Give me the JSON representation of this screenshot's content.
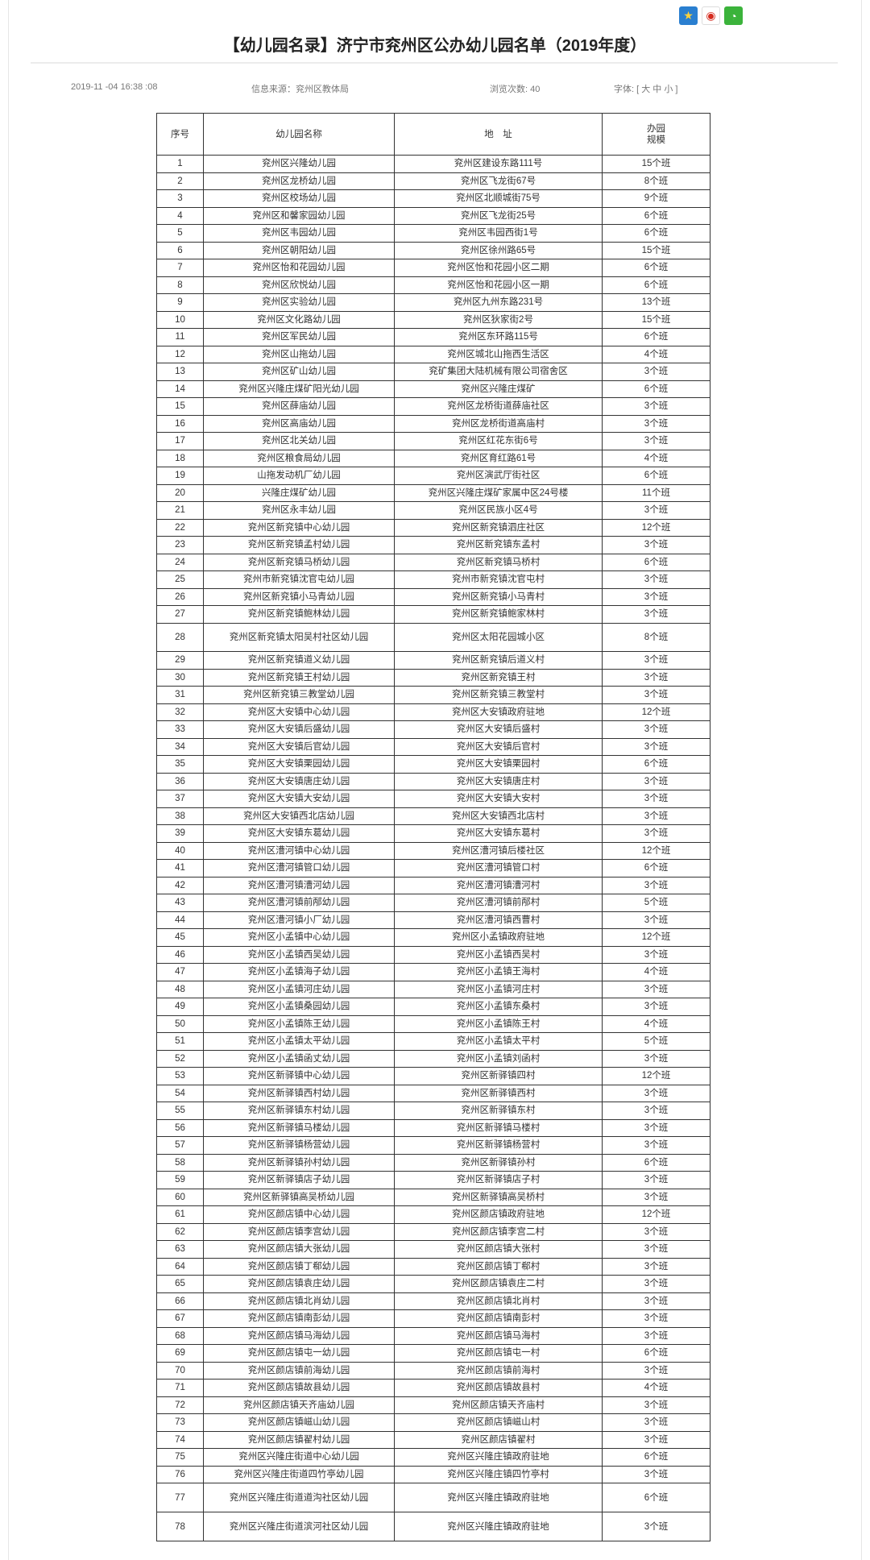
{
  "share_icons": [
    "qzone-icon",
    "weibo-icon",
    "wechat-icon"
  ],
  "title": "【幼儿园名录】济宁市兖州区公办幼儿园名单（2019年度）",
  "meta": {
    "datetime": "2019-11 -04 16:38 :08",
    "source": "信息来源：兖州区教体局",
    "views": "浏览次数: 40",
    "font_label": "字体: [",
    "font_large": "大",
    "font_medium": "中",
    "font_small": "小",
    "font_close": "]"
  },
  "table": {
    "headers": {
      "no": "序号",
      "name": "幼儿园名称",
      "address": "地　址",
      "size_line1": "办园",
      "size_line2": "规模"
    },
    "rows": [
      [
        "1",
        "兖州区兴隆幼儿园",
        "兖州区建设东路111号",
        "15个班"
      ],
      [
        "2",
        "兖州区龙桥幼儿园",
        "兖州区飞龙街67号",
        "8个班"
      ],
      [
        "3",
        "兖州区校场幼儿园",
        "兖州区北顺城街75号",
        "9个班"
      ],
      [
        "4",
        "兖州区和馨家园幼儿园",
        "兖州区飞龙街25号",
        "6个班"
      ],
      [
        "5",
        "兖州区韦园幼儿园",
        "兖州区韦园西街1号",
        "6个班"
      ],
      [
        "6",
        "兖州区朝阳幼儿园",
        "兖州区徐州路65号",
        "15个班"
      ],
      [
        "7",
        "兖州区怡和花园幼儿园",
        "兖州区怡和花园小区二期",
        "6个班"
      ],
      [
        "8",
        "兖州区欣悦幼儿园",
        "兖州区怡和花园小区一期",
        "6个班"
      ],
      [
        "9",
        "兖州区实验幼儿园",
        "兖州区九州东路231号",
        "13个班"
      ],
      [
        "10",
        "兖州区文化路幼儿园",
        "兖州区狄家街2号",
        "15个班"
      ],
      [
        "11",
        "兖州区军民幼儿园",
        "兖州区东环路115号",
        "6个班"
      ],
      [
        "12",
        "兖州区山拖幼儿园",
        "兖州区城北山拖西生活区",
        "4个班"
      ],
      [
        "13",
        "兖州区矿山幼儿园",
        "兖矿集团大陆机械有限公司宿舍区",
        "3个班"
      ],
      [
        "14",
        "兖州区兴隆庄煤矿阳光幼儿园",
        "兖州区兴隆庄煤矿",
        "6个班"
      ],
      [
        "15",
        "兖州区薛庙幼儿园",
        "兖州区龙桥街道薛庙社区",
        "3个班"
      ],
      [
        "16",
        "兖州区高庙幼儿园",
        "兖州区龙桥街道高庙村",
        "3个班"
      ],
      [
        "17",
        "兖州区北关幼儿园",
        "兖州区红花东街6号",
        "3个班"
      ],
      [
        "18",
        "兖州区粮食局幼儿园",
        "兖州区育红路61号",
        "4个班"
      ],
      [
        "19",
        "山拖发动机厂幼儿园",
        "兖州区演武厅街社区",
        "6个班"
      ],
      [
        "20",
        "兴隆庄煤矿幼儿园",
        "兖州区兴隆庄煤矿家属中区24号楼",
        "11个班"
      ],
      [
        "21",
        "兖州区永丰幼儿园",
        "兖州区民族小区4号",
        "3个班"
      ],
      [
        "22",
        "兖州区新兖镇中心幼儿园",
        "兖州区新兖镇泗庄社区",
        "12个班"
      ],
      [
        "23",
        "兖州区新兖镇孟村幼儿园",
        "兖州区新兖镇东孟村",
        "3个班"
      ],
      [
        "24",
        "兖州区新兖镇马桥幼儿园",
        "兖州区新兖镇马桥村",
        "6个班"
      ],
      [
        "25",
        "兖州市新兖镇沈官屯幼儿园",
        "兖州市新兖镇沈官屯村",
        "3个班"
      ],
      [
        "26",
        "兖州区新兖镇小马青幼儿园",
        "兖州区新兖镇小马青村",
        "3个班"
      ],
      [
        "27",
        "兖州区新兖镇鲍林幼儿园",
        "兖州区新兖镇鲍家林村",
        "3个班"
      ],
      [
        "28",
        "兖州区新兖镇太阳吴村社区幼儿园",
        "兖州区太阳花园城小区",
        "8个班"
      ],
      [
        "29",
        "兖州区新兖镇道义幼儿园",
        "兖州区新兖镇后道义村",
        "3个班"
      ],
      [
        "30",
        "兖州区新兖镇王村幼儿园",
        "兖州区新兖镇王村",
        "3个班"
      ],
      [
        "31",
        "兖州区新兖镇三教堂幼儿园",
        "兖州区新兖镇三教堂村",
        "3个班"
      ],
      [
        "32",
        "兖州区大安镇中心幼儿园",
        "兖州区大安镇政府驻地",
        "12个班"
      ],
      [
        "33",
        "兖州区大安镇后盛幼儿园",
        "兖州区大安镇后盛村",
        "3个班"
      ],
      [
        "34",
        "兖州区大安镇后官幼儿园",
        "兖州区大安镇后官村",
        "3个班"
      ],
      [
        "35",
        "兖州区大安镇栗园幼儿园",
        "兖州区大安镇栗园村",
        "6个班"
      ],
      [
        "36",
        "兖州区大安镇唐庄幼儿园",
        "兖州区大安镇唐庄村",
        "3个班"
      ],
      [
        "37",
        "兖州区大安镇大安幼儿园",
        "兖州区大安镇大安村",
        "3个班"
      ],
      [
        "38",
        "兖州区大安镇西北店幼儿园",
        "兖州区大安镇西北店村",
        "3个班"
      ],
      [
        "39",
        "兖州区大安镇东葛幼儿园",
        "兖州区大安镇东葛村",
        "3个班"
      ],
      [
        "40",
        "兖州区漕河镇中心幼儿园",
        "兖州区漕河镇后楼社区",
        "12个班"
      ],
      [
        "41",
        "兖州区漕河镇管口幼儿园",
        "兖州区漕河镇管口村",
        "6个班"
      ],
      [
        "42",
        "兖州区漕河镇漕河幼儿园",
        "兖州区漕河镇漕河村",
        "3个班"
      ],
      [
        "43",
        "兖州区漕河镇前邴幼儿园",
        "兖州区漕河镇前邴村",
        "5个班"
      ],
      [
        "44",
        "兖州区漕河镇小厂幼儿园",
        "兖州区漕河镇西曹村",
        "3个班"
      ],
      [
        "45",
        "兖州区小孟镇中心幼儿园",
        "兖州区小孟镇政府驻地",
        "12个班"
      ],
      [
        "46",
        "兖州区小孟镇西吴幼儿园",
        "兖州区小孟镇西吴村",
        "3个班"
      ],
      [
        "47",
        "兖州区小孟镇海子幼儿园",
        "兖州区小孟镇王海村",
        "4个班"
      ],
      [
        "48",
        "兖州区小孟镇河庄幼儿园",
        "兖州区小孟镇河庄村",
        "3个班"
      ],
      [
        "49",
        "兖州区小孟镇桑园幼儿园",
        "兖州区小孟镇东桑村",
        "3个班"
      ],
      [
        "50",
        "兖州区小孟镇陈王幼儿园",
        "兖州区小孟镇陈王村",
        "4个班"
      ],
      [
        "51",
        "兖州区小孟镇太平幼儿园",
        "兖州区小孟镇太平村",
        "5个班"
      ],
      [
        "52",
        "兖州区小孟镇函丈幼儿园",
        "兖州区小孟镇刘函村",
        "3个班"
      ],
      [
        "53",
        "兖州区新驿镇中心幼儿园",
        "兖州区新驿镇四村",
        "12个班"
      ],
      [
        "54",
        "兖州区新驿镇西村幼儿园",
        "兖州区新驿镇西村",
        "3个班"
      ],
      [
        "55",
        "兖州区新驿镇东村幼儿园",
        "兖州区新驿镇东村",
        "3个班"
      ],
      [
        "56",
        "兖州区新驿镇马楼幼儿园",
        "兖州区新驿镇马楼村",
        "3个班"
      ],
      [
        "57",
        "兖州区新驿镇杨营幼儿园",
        "兖州区新驿镇杨营村",
        "3个班"
      ],
      [
        "58",
        "兖州区新驿镇孙村幼儿园",
        "兖州区新驿镇孙村",
        "6个班"
      ],
      [
        "59",
        "兖州区新驿镇店子幼儿园",
        "兖州区新驿镇店子村",
        "3个班"
      ],
      [
        "60",
        "兖州区新驿镇高吴桥幼儿园",
        "兖州区新驿镇高吴桥村",
        "3个班"
      ],
      [
        "61",
        "兖州区颜店镇中心幼儿园",
        "兖州区颜店镇政府驻地",
        "12个班"
      ],
      [
        "62",
        "兖州区颜店镇李宫幼儿园",
        "兖州区颜店镇李宫二村",
        "3个班"
      ],
      [
        "63",
        "兖州区颜店镇大张幼儿园",
        "兖州区颜店镇大张村",
        "3个班"
      ],
      [
        "64",
        "兖州区颜店镇丁郗幼儿园",
        "兖州区颜店镇丁郗村",
        "3个班"
      ],
      [
        "65",
        "兖州区颜店镇袁庄幼儿园",
        "兖州区颜店镇袁庄二村",
        "3个班"
      ],
      [
        "66",
        "兖州区颜店镇北肖幼儿园",
        "兖州区颜店镇北肖村",
        "3个班"
      ],
      [
        "67",
        "兖州区颜店镇南彭幼儿园",
        "兖州区颜店镇南彭村",
        "3个班"
      ],
      [
        "68",
        "兖州区颜店镇马海幼儿园",
        "兖州区颜店镇马海村",
        "3个班"
      ],
      [
        "69",
        "兖州区颜店镇屯一幼儿园",
        "兖州区颜店镇屯一村",
        "6个班"
      ],
      [
        "70",
        "兖州区颜店镇前海幼儿园",
        "兖州区颜店镇前海村",
        "3个班"
      ],
      [
        "71",
        "兖州区颜店镇故县幼儿园",
        "兖州区颜店镇故县村",
        "4个班"
      ],
      [
        "72",
        "兖州区颜店镇天齐庙幼儿园",
        "兖州区颜店镇天齐庙村",
        "3个班"
      ],
      [
        "73",
        "兖州区颜店镇嵫山幼儿园",
        "兖州区颜店镇嵫山村",
        "3个班"
      ],
      [
        "74",
        "兖州区颜店镇翟村幼儿园",
        "兖州区颜店镇翟村",
        "3个班"
      ],
      [
        "75",
        "兖州区兴隆庄街道中心幼儿园",
        "兖州区兴隆庄镇政府驻地",
        "6个班"
      ],
      [
        "76",
        "兖州区兴隆庄街道四竹亭幼儿园",
        "兖州区兴隆庄镇四竹亭村",
        "3个班"
      ],
      [
        "77",
        "兖州区兴隆庄街道道沟社区幼儿园",
        "兖州区兴隆庄镇政府驻地",
        "6个班"
      ],
      [
        "78",
        "兖州区兴隆庄街道滨河社区幼儿园",
        "兖州区兴隆庄镇政府驻地",
        "3个班"
      ]
    ]
  }
}
